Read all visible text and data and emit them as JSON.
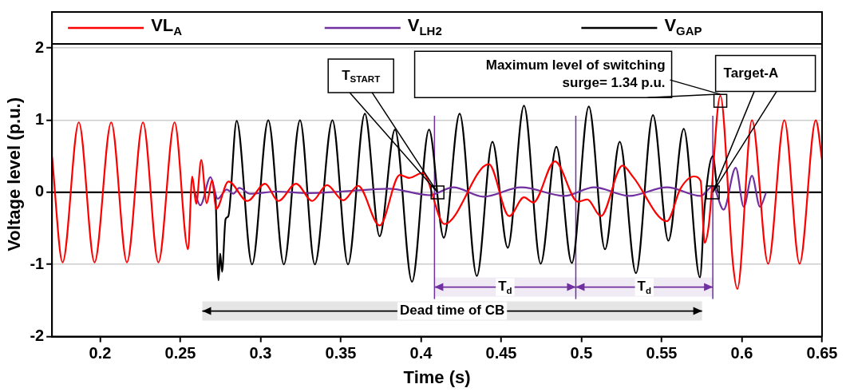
{
  "chart_data": {
    "type": "line",
    "xlabel": "Time (s)",
    "ylabel": "Voltage level (p.u.)",
    "xlim": [
      0.17,
      0.65
    ],
    "xticks": [
      0.2,
      0.25,
      0.3,
      0.35,
      0.4,
      0.45,
      0.5,
      0.55,
      0.6,
      0.65
    ],
    "ylim": [
      -2,
      2.5
    ],
    "yticks": [
      -2,
      -1,
      0,
      1,
      2
    ],
    "grid": "y",
    "legend": "top",
    "series": [
      {
        "name": "VL$_{A}$",
        "color": "#ff0000",
        "x": [
          0.17,
          0.1766,
          0.1867,
          0.1965,
          0.2069,
          0.2167,
          0.2267,
          0.2363,
          0.2464,
          0.2548,
          0.2574,
          0.2599,
          0.263,
          0.2664,
          0.2698,
          0.2723,
          0.28,
          0.2918,
          0.3028,
          0.3111,
          0.3221,
          0.3322,
          0.3414,
          0.3515,
          0.3608,
          0.3742,
          0.3868,
          0.3927,
          0.4011,
          0.4146,
          0.4423,
          0.455,
          0.4642,
          0.47,
          0.4835,
          0.4978,
          0.5037,
          0.5121,
          0.5256,
          0.5323,
          0.5533,
          0.5617,
          0.5701,
          0.5743,
          0.5768,
          0.5793,
          0.5866,
          0.5945,
          0.5972,
          0.6063,
          0.6164,
          0.6265,
          0.636,
          0.6461,
          0.65
        ],
        "values": [
          0.49,
          -0.97,
          0.97,
          -0.97,
          0.97,
          -0.97,
          0.97,
          -0.97,
          0.97,
          -0.79,
          0.22,
          -0.16,
          0.45,
          -0.15,
          0.17,
          -0.23,
          0.15,
          -0.12,
          0.12,
          -0.12,
          0.12,
          -0.12,
          0.1,
          -0.11,
          0.09,
          -0.46,
          0.24,
          0.2,
          0.27,
          -0.44,
          0.39,
          -0.33,
          -0.07,
          -0.14,
          0.43,
          -0.13,
          -0.1,
          -0.33,
          0.37,
          0.21,
          -0.4,
          0.05,
          0.22,
          0.16,
          -0.7,
          -0.47,
          1.34,
          -1.0,
          -1.34,
          1.0,
          -0.99,
          1.0,
          -0.99,
          1.0,
          0.45
        ]
      },
      {
        "name": "V$_{LH2}$",
        "color": "#7030a0",
        "x": [
          0.259,
          0.2624,
          0.2688,
          0.2733,
          0.2789,
          0.283,
          0.2867,
          0.2935,
          0.31,
          0.33,
          0.35,
          0.3801,
          0.4053,
          0.4201,
          0.439,
          0.4625,
          0.4894,
          0.5079,
          0.5298,
          0.5533,
          0.5743,
          0.5819,
          0.5886,
          0.5962,
          0.6012,
          0.6063,
          0.6113,
          0.6152
        ],
        "values": [
          0,
          -0.18,
          0.21,
          -0.09,
          0.04,
          -0.02,
          0.06,
          -0.02,
          0.01,
          -0.01,
          0.01,
          0.05,
          -0.04,
          0.07,
          -0.06,
          0.07,
          -0.05,
          0.07,
          -0.05,
          0.07,
          -0.05,
          0.08,
          -0.24,
          0.34,
          -0.2,
          0.23,
          -0.2,
          0
        ]
      },
      {
        "name": "V$_{GAP}$",
        "color": "#000000",
        "x": [
          0.17,
          0.2716,
          0.2738,
          0.2748,
          0.276,
          0.2782,
          0.2799,
          0.2851,
          0.2947,
          0.3048,
          0.3145,
          0.3246,
          0.3338,
          0.3448,
          0.3545,
          0.365,
          0.3742,
          0.3838,
          0.3944,
          0.405,
          0.4142,
          0.4241,
          0.4348,
          0.4445,
          0.4541,
          0.4642,
          0.4746,
          0.4844,
          0.494,
          0.5046,
          0.5147,
          0.5239,
          0.534,
          0.5446,
          0.5542,
          0.5638,
          0.5739,
          0.5768,
          0.5819,
          0.5853,
          0.65
        ],
        "values": [
          0,
          0,
          -1.22,
          -0.85,
          -1.1,
          -0.37,
          -0.33,
          0.99,
          -1.0,
          1.0,
          -1.0,
          1.0,
          -1.0,
          1.0,
          -1.0,
          1.09,
          -0.61,
          0.87,
          -1.24,
          0.87,
          -0.63,
          1.09,
          -1.16,
          0.7,
          -0.77,
          1.2,
          -0.99,
          0.63,
          -0.98,
          1.19,
          -0.79,
          0.7,
          -1.12,
          1.07,
          -0.67,
          0.88,
          -1.18,
          -0.2,
          0.5,
          0,
          0
        ]
      }
    ],
    "ref_lines": [
      {
        "axis": "x",
        "value": 0.4084,
        "color": "#7030a0"
      },
      {
        "axis": "x",
        "value": 0.4965,
        "color": "#7030a0"
      },
      {
        "axis": "x",
        "value": 0.5819,
        "color": "#7030a0"
      }
    ],
    "bands": [
      {
        "axis": "x",
        "from": 0.4084,
        "to": 0.4965,
        "label": "T$_{d}$",
        "color": "#7030a0"
      },
      {
        "axis": "x",
        "from": 0.4965,
        "to": 0.5819,
        "label": "T$_{d}$",
        "color": "#7030a0"
      },
      {
        "axis": "x",
        "from": 0.2637,
        "to": 0.5752,
        "label": "Dead time of CB",
        "color": "#000000"
      }
    ],
    "annotations": [
      {
        "text": "T$_{START}$",
        "x": 0.4103,
        "y": 0
      },
      {
        "text": "Maximum level of switching surge= 1.34 p.u.",
        "x": 0.5866,
        "y": 1.27
      },
      {
        "text": "Target-A",
        "x": 0.5819,
        "y": 0
      }
    ]
  }
}
